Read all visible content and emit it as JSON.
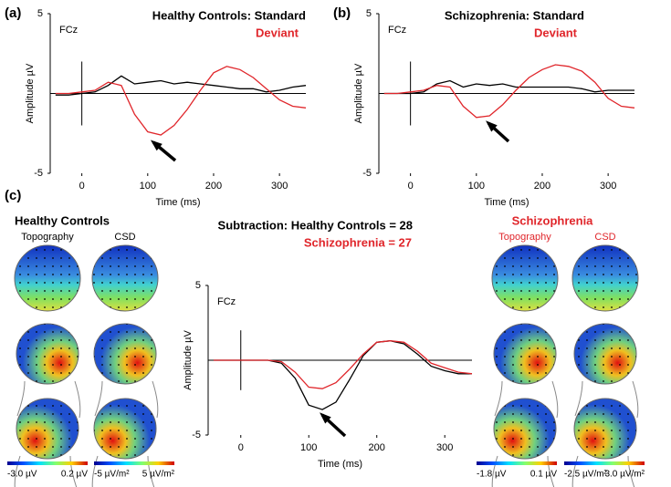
{
  "chart_data": [
    {
      "type": "line",
      "panel_label": "(a)",
      "annotation": "FCz",
      "xlabel": "Time (ms)",
      "ylabel": "Amplitude µV",
      "x": [
        -40,
        -20,
        0,
        20,
        40,
        60,
        80,
        100,
        120,
        140,
        160,
        180,
        200,
        220,
        240,
        260,
        280,
        300,
        320,
        340
      ],
      "xlim": [
        -48,
        340
      ],
      "xticks": [
        0,
        100,
        200,
        300
      ],
      "ylim": [
        -5,
        5
      ],
      "yticks": [
        -5,
        5
      ],
      "series": [
        {
          "name": "Healthy Controls: Standard",
          "color": "#000000",
          "values": [
            -0.1,
            -0.1,
            0,
            0.1,
            0.5,
            1.1,
            0.6,
            0.7,
            0.8,
            0.6,
            0.7,
            0.6,
            0.5,
            0.4,
            0.3,
            0.3,
            0.1,
            0.2,
            0.4,
            0.5
          ]
        },
        {
          "name": "Deviant",
          "color": "#e0262b",
          "values": [
            0,
            0,
            0.1,
            0.2,
            0.7,
            0.5,
            -1.3,
            -2.4,
            -2.6,
            -2.0,
            -1.0,
            0.2,
            1.3,
            1.7,
            1.5,
            1.0,
            0.3,
            -0.4,
            -0.8,
            -0.9
          ]
        }
      ]
    },
    {
      "type": "line",
      "panel_label": "(b)",
      "annotation": "FCz",
      "xlabel": "Time (ms)",
      "ylabel": "Amplitude µV",
      "x": [
        -40,
        -20,
        0,
        20,
        40,
        60,
        80,
        100,
        120,
        140,
        160,
        180,
        200,
        220,
        240,
        260,
        280,
        300,
        320,
        340
      ],
      "xlim": [
        -48,
        340
      ],
      "xticks": [
        0,
        100,
        200,
        300
      ],
      "ylim": [
        -5,
        5
      ],
      "yticks": [
        -5,
        5
      ],
      "series": [
        {
          "name": "Schizophrenia: Standard",
          "color": "#000000",
          "values": [
            0,
            0,
            0,
            0.1,
            0.6,
            0.8,
            0.4,
            0.6,
            0.5,
            0.6,
            0.4,
            0.4,
            0.4,
            0.4,
            0.4,
            0.3,
            0.1,
            0.2,
            0.2,
            0.2
          ]
        },
        {
          "name": "Deviant",
          "color": "#e0262b",
          "values": [
            0,
            0,
            0.1,
            0.2,
            0.5,
            0.4,
            -0.8,
            -1.5,
            -1.4,
            -0.7,
            0.2,
            1.0,
            1.5,
            1.8,
            1.7,
            1.4,
            0.7,
            -0.3,
            -0.8,
            -0.9
          ]
        }
      ]
    },
    {
      "type": "line",
      "annotation": "FCz",
      "xlabel": "Time (ms)",
      "ylabel": "Amplitude µV",
      "x": [
        -40,
        -20,
        0,
        20,
        40,
        60,
        80,
        100,
        120,
        140,
        160,
        180,
        200,
        220,
        240,
        260,
        280,
        300,
        320,
        340
      ],
      "xlim": [
        -48,
        340
      ],
      "xticks": [
        0,
        100,
        200,
        300
      ],
      "ylim": [
        -5,
        5
      ],
      "yticks": [
        -5,
        5
      ],
      "series": [
        {
          "name": "Subtraction: Healthy Controls = 28",
          "color": "#000000",
          "values": [
            0,
            0,
            0,
            0,
            0,
            -0.2,
            -1.2,
            -3.0,
            -3.3,
            -2.8,
            -1.3,
            0.3,
            1.2,
            1.3,
            1.1,
            0.4,
            -0.4,
            -0.7,
            -0.9,
            -0.9
          ]
        },
        {
          "name": "Schizophrenia = 27",
          "color": "#e0262b",
          "values": [
            0,
            0,
            0,
            0,
            0,
            -0.1,
            -0.8,
            -1.8,
            -1.9,
            -1.5,
            -0.6,
            0.4,
            1.2,
            1.3,
            1.2,
            0.6,
            -0.2,
            -0.5,
            -0.8,
            -0.9
          ]
        }
      ]
    }
  ],
  "maps": {
    "panel_label": "(c)",
    "groups": [
      {
        "title": "Healthy Controls",
        "color": "#000000",
        "map_labels": [
          "Topography",
          "CSD"
        ],
        "scale_labels": [
          "-3.0 µV",
          "0.2 µV",
          "-5 µV/m²",
          "5 µV/m²"
        ]
      },
      {
        "title": "Schizophrenia",
        "color": "#e0262b",
        "map_labels": [
          "Topography",
          "CSD"
        ],
        "scale_labels": [
          "-1.8 µV",
          "0.1 µV",
          "-2.5 µV/m²",
          "3.0 µV/m²"
        ]
      }
    ]
  }
}
